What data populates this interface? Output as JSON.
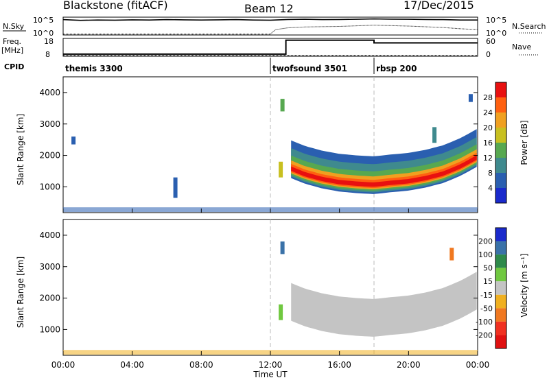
{
  "header": {
    "station": "Blackstone (fitACF)",
    "beam": "Beam 12",
    "date": "17/Dec/2015"
  },
  "summary_panels": {
    "nsky_label": "N.Sky",
    "nsearch_label": "N.Search",
    "nsky_ticks": [
      "10^5",
      "10^0"
    ],
    "nsearch_ticks": [
      "10^5",
      "10^0"
    ],
    "freq_label": "Freq.",
    "freq_unit": "[MHz]",
    "freq_ticks": [
      "18",
      "8"
    ],
    "nave_label": "Nave",
    "nave_ticks": [
      "60",
      "0"
    ],
    "cpid_label": "CPID",
    "cpid_segments": [
      {
        "name": "themis 3300",
        "start_hour": 0
      },
      {
        "name": "twofsound 3501",
        "start_hour": 12
      },
      {
        "name": "rbsp 200",
        "start_hour": 18
      }
    ],
    "nsky_level": [
      [
        0,
        0.86
      ],
      [
        1,
        0.82
      ],
      [
        2,
        0.84
      ],
      [
        3,
        0.83
      ],
      [
        4,
        0.85
      ],
      [
        5,
        0.84
      ],
      [
        6,
        0.86
      ],
      [
        7,
        0.85
      ],
      [
        8,
        0.84
      ],
      [
        9,
        0.85
      ],
      [
        10,
        0.86
      ],
      [
        11,
        0.84
      ],
      [
        12,
        0.83
      ],
      [
        13,
        0.87
      ],
      [
        14,
        0.88
      ],
      [
        15,
        0.86
      ],
      [
        16,
        0.87
      ],
      [
        17,
        0.88
      ],
      [
        18,
        0.9
      ],
      [
        19,
        0.89
      ],
      [
        20,
        0.88
      ],
      [
        21,
        0.87
      ],
      [
        22,
        0.86
      ],
      [
        23,
        0.84
      ],
      [
        24,
        0.84
      ]
    ],
    "nsearch_level": [
      [
        0,
        0.05
      ],
      [
        12,
        0.05
      ],
      [
        12.3,
        0.3
      ],
      [
        13,
        0.4
      ],
      [
        14,
        0.45
      ],
      [
        16,
        0.48
      ],
      [
        18,
        0.55
      ],
      [
        20,
        0.5
      ],
      [
        22,
        0.42
      ],
      [
        23,
        0.35
      ],
      [
        24,
        0.3
      ]
    ],
    "freq_level": [
      [
        0,
        0.12
      ],
      [
        12.9,
        0.12
      ],
      [
        12.9,
        0.9
      ],
      [
        18,
        0.9
      ],
      [
        18,
        0.75
      ],
      [
        24,
        0.75
      ]
    ],
    "nave_level": [
      [
        0,
        0.05
      ],
      [
        24,
        0.05
      ]
    ]
  },
  "panels": {
    "power": {
      "ylabel": "Slant Range [km]",
      "colorbar_label": "Power [dB]",
      "colorbar_ticks": [
        "4",
        "8",
        "12",
        "16",
        "20",
        "24",
        "28"
      ],
      "colors": [
        "#1a2acc",
        "#2a5fb0",
        "#3f8a8e",
        "#57a850",
        "#c8c020",
        "#f0a020",
        "#ff6010",
        "#e81010"
      ]
    },
    "velocity": {
      "ylabel": "Slant Range [km]",
      "colorbar_label": "Velocity [m s⁻¹]",
      "colorbar_ticks": [
        "200",
        "100",
        "50",
        "15",
        "-15",
        "-50",
        "-100",
        "-200"
      ],
      "colors": [
        "#1a2acc",
        "#3a72a8",
        "#2e8a4a",
        "#70c840",
        "#c4c4c4",
        "#f0b020",
        "#f07820",
        "#f03020",
        "#e01010"
      ]
    }
  },
  "x_axis": {
    "label": "Time UT",
    "ticks": [
      "00:00",
      "04:00",
      "08:00",
      "12:00",
      "16:00",
      "20:00",
      "00:00"
    ]
  },
  "chart_data": [
    {
      "type": "heatmap",
      "title": "Blackstone (fitACF)  Beam 12  17/Dec/2015",
      "variable": "Power",
      "unit": "dB",
      "xlabel": "Time UT",
      "ylabel": "Slant Range [km]",
      "xlim_hours": [
        0,
        24
      ],
      "ylim_km": [
        180,
        4500
      ],
      "clim": [
        0,
        32
      ],
      "y_ticks_km": [
        1000,
        2000,
        3000,
        4000
      ],
      "main_echo_band": {
        "start_hour": 13.2,
        "end_hour": 24,
        "center_km": [
          [
            13.2,
            1580
          ],
          [
            14,
            1400
          ],
          [
            15,
            1250
          ],
          [
            16,
            1150
          ],
          [
            17,
            1100
          ],
          [
            18,
            1070
          ],
          [
            19,
            1130
          ],
          [
            20,
            1180
          ],
          [
            21,
            1280
          ],
          [
            22,
            1420
          ],
          [
            23,
            1650
          ],
          [
            24,
            1950
          ]
        ],
        "peak_power_dB": 30
      },
      "near_range_band": {
        "start_hour": 0,
        "end_hour": 24,
        "range_km": [
          200,
          350
        ],
        "power_dB": 6
      },
      "patches": [
        {
          "hour": 0.6,
          "range_km": [
            2350,
            2600
          ],
          "power_dB": 6
        },
        {
          "hour": 6.5,
          "range_km": [
            650,
            1300
          ],
          "power_dB": 6
        },
        {
          "hour": 12.6,
          "range_km": [
            1300,
            1800
          ],
          "power_dB": 18
        },
        {
          "hour": 12.7,
          "range_km": [
            3400,
            3800
          ],
          "power_dB": 14
        },
        {
          "hour": 21.5,
          "range_km": [
            2400,
            2900
          ],
          "power_dB": 8
        },
        {
          "hour": 23.6,
          "range_km": [
            3700,
            3950
          ],
          "power_dB": 6
        }
      ]
    },
    {
      "type": "heatmap",
      "variable": "Velocity",
      "unit": "m s^-1",
      "xlabel": "Time UT",
      "ylabel": "Slant Range [km]",
      "xlim_hours": [
        0,
        24
      ],
      "ylim_km": [
        180,
        4500
      ],
      "clim": [
        -200,
        200
      ],
      "y_ticks_km": [
        1000,
        2000,
        3000,
        4000
      ],
      "main_echo_band": {
        "start_hour": 13.2,
        "end_hour": 24,
        "velocity_m_s": 0,
        "note": "ground scatter (grey)"
      },
      "near_range_band": {
        "start_hour": 0,
        "end_hour": 24,
        "range_km": [
          200,
          350
        ],
        "velocity_m_s": -40
      },
      "patches": [
        {
          "hour": 12.6,
          "range_km": [
            1300,
            1800
          ],
          "velocity_m_s": 30
        },
        {
          "hour": 12.7,
          "range_km": [
            3400,
            3800
          ],
          "velocity_m_s": 120
        },
        {
          "hour": 22.5,
          "range_km": [
            3200,
            3600
          ],
          "velocity_m_s": -60
        }
      ]
    }
  ]
}
